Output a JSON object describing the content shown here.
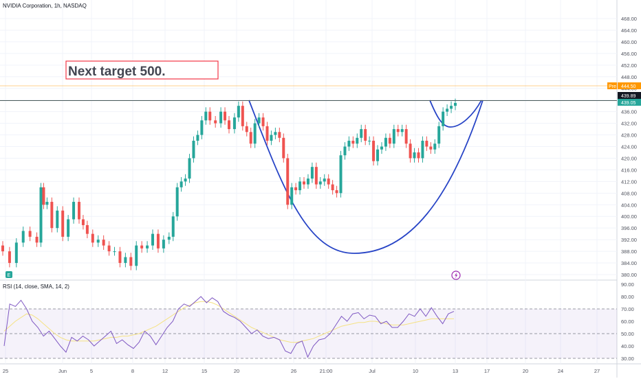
{
  "header": {
    "title": "NVIDIA Corporation, 1h, NASDAQ"
  },
  "annotation": {
    "text": "Next target 500."
  },
  "rsi_panel": {
    "label": "RSI (14, close, SMA, 14, 2)"
  },
  "colors": {
    "up": "#26a69a",
    "down": "#ef5350",
    "curve": "#2744c6",
    "rsi": "#7e57c2",
    "rsi_ma": "#f5e283",
    "pre": "#ff9800",
    "note_border": "#f23645"
  },
  "price_labels": {
    "pre_tag": "Pre",
    "pre_value": "444.50",
    "current": "439.89",
    "last": "439.05"
  },
  "event_icons": {
    "earnings": "E",
    "flash": "flash-icon"
  },
  "chart_data": [
    {
      "type": "candlestick",
      "title": "NVIDIA Corporation, 1h, NASDAQ",
      "x_tick_labels": [
        "25",
        "Jun",
        "5",
        "8",
        "12",
        "15",
        "20",
        "26",
        "21:00",
        "Jul",
        "10",
        "13",
        "17",
        "20",
        "24",
        "27"
      ],
      "y_tick_labels": [
        468,
        464,
        460,
        456,
        452,
        448,
        444,
        440,
        436,
        432,
        428,
        424,
        420,
        416,
        412,
        408,
        404,
        400,
        396,
        392,
        388,
        384,
        380
      ],
      "ylim": [
        377.5,
        470.5
      ],
      "x": [
        0,
        10,
        20,
        30,
        40,
        50,
        56,
        60,
        65,
        72,
        80,
        88,
        96,
        104,
        112,
        118,
        124,
        132,
        140,
        148,
        156,
        164,
        172,
        180,
        188,
        196,
        204,
        212,
        220,
        228,
        236,
        244,
        250,
        256,
        262,
        268,
        274,
        280,
        286,
        292,
        298,
        304,
        312,
        320,
        326,
        332,
        340,
        346,
        352,
        358,
        364,
        370,
        376,
        382,
        388,
        394,
        400,
        406,
        412,
        418,
        424,
        430,
        436,
        442,
        448,
        454,
        460,
        466,
        472,
        478,
        484,
        490,
        496,
        502,
        508,
        514,
        520,
        526,
        532,
        538,
        544,
        550,
        556,
        562,
        568,
        574,
        580,
        586,
        592,
        598,
        604,
        610,
        616,
        622,
        628,
        634,
        640,
        646,
        652,
        658,
        664
      ],
      "close": [
        388,
        384,
        391,
        395,
        393,
        391,
        410,
        404,
        405,
        396,
        402,
        393,
        399,
        405,
        399,
        397,
        394,
        391,
        392,
        390,
        388,
        388,
        384,
        386,
        383,
        390,
        389,
        390,
        394,
        389,
        392,
        393,
        400,
        410,
        412,
        413,
        420,
        426,
        428,
        433,
        436,
        433,
        432,
        436,
        433,
        430,
        434,
        438,
        431,
        429,
        425,
        432,
        434,
        431,
        426,
        428,
        429,
        427,
        420,
        404,
        410,
        409,
        412,
        411,
        413,
        417,
        411,
        412,
        413,
        411,
        409,
        408,
        421,
        424,
        426,
        425,
        427,
        430,
        426,
        426,
        419,
        423,
        424,
        427,
        425,
        430,
        429,
        430,
        425,
        420,
        422,
        420,
        426,
        424,
        423,
        425,
        431,
        436,
        437,
        438,
        439
      ],
      "ohlc_note": "values read from the price axis; candles drawn around close with estimated opens"
    },
    {
      "type": "line",
      "title": "RSI (14, close, SMA, 14, 2)",
      "y_tick_labels": [
        90,
        80,
        70,
        60,
        50,
        40,
        30
      ],
      "ylim": [
        28,
        92
      ],
      "bands": [
        70,
        50,
        30
      ],
      "series": [
        {
          "values": [
            40,
            74,
            72,
            77,
            70,
            60,
            55,
            48,
            52,
            46,
            40,
            35,
            47,
            44,
            48,
            45,
            40,
            44,
            48,
            52,
            42,
            45,
            41,
            38,
            43,
            52,
            48,
            41,
            48,
            55,
            60,
            70,
            74,
            72,
            76,
            80,
            75,
            79,
            76,
            68,
            65,
            63,
            60,
            55,
            50,
            53,
            48,
            46,
            47,
            45,
            36,
            34,
            42,
            44,
            31,
            40,
            45,
            46,
            50,
            57,
            64,
            60,
            66,
            67,
            62,
            65,
            64,
            58,
            60,
            55,
            55,
            60,
            66,
            64,
            70,
            64,
            71,
            64,
            58,
            66,
            68
          ]
        },
        {
          "values": [
            52,
            56,
            60,
            63,
            66,
            65,
            62,
            58,
            54,
            50,
            47,
            45,
            44,
            44,
            44,
            44,
            44,
            45,
            46,
            47,
            47,
            48,
            48,
            49,
            50,
            52,
            54,
            56,
            59,
            62,
            65,
            68,
            71,
            73,
            75,
            76,
            76,
            75,
            73,
            70,
            67,
            64,
            61,
            58,
            55,
            53,
            51,
            49,
            47,
            45,
            44,
            43,
            43,
            44,
            45,
            46,
            48,
            50,
            52,
            54,
            56,
            57,
            58,
            59,
            59,
            60,
            60,
            59,
            58,
            57,
            57,
            57,
            58,
            59,
            60,
            61,
            62,
            62,
            62,
            62,
            62
          ]
        }
      ]
    }
  ]
}
